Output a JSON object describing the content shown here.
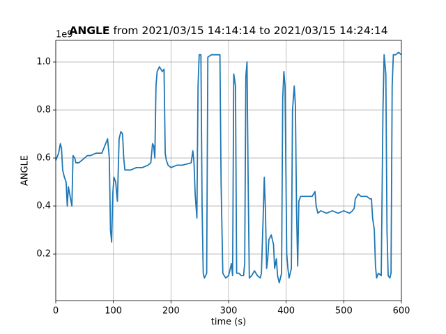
{
  "chart_data": {
    "type": "line",
    "title": {
      "bold": "ANGLE",
      "rest": "from 2021/03/15 14:14:14 to 2021/03/15 14:24:14"
    },
    "offset_label": "1e9",
    "x_label": "time (s)",
    "y_label": "ANGLE",
    "xlim": [
      0,
      600
    ],
    "xticks": [
      0,
      100,
      200,
      300,
      400,
      500,
      600
    ],
    "ylim": [
      0.006,
      1.09
    ],
    "yticks": [
      0.2,
      0.4,
      0.6,
      0.8,
      {
        "value": 1,
        "label": "1.0"
      }
    ],
    "grid": true,
    "series": [
      {
        "color": "#1f77b4",
        "x": [
          0,
          5,
          8,
          10,
          12,
          15,
          18,
          20,
          22,
          25,
          28,
          30,
          33,
          35,
          40,
          45,
          50,
          55,
          60,
          70,
          80,
          90,
          93,
          95,
          97,
          99,
          101,
          104,
          107,
          110,
          113,
          116,
          118,
          120,
          125,
          130,
          140,
          150,
          160,
          165,
          168,
          170,
          172,
          174,
          176,
          180,
          185,
          188,
          190,
          192,
          195,
          200,
          210,
          220,
          235,
          238,
          240,
          242,
          245,
          247,
          249,
          252,
          254,
          256,
          258,
          262,
          264,
          270,
          280,
          285,
          287,
          290,
          295,
          300,
          305,
          307,
          309,
          312,
          314,
          318,
          322,
          326,
          328,
          330,
          332,
          334,
          336,
          340,
          345,
          350,
          355,
          357,
          360,
          362,
          364,
          366,
          368,
          370,
          374,
          378,
          380,
          383,
          385,
          388,
          392,
          394,
          396,
          398,
          401,
          403,
          405,
          409,
          411,
          414,
          416,
          418,
          420,
          422,
          425,
          430,
          440,
          445,
          450,
          452,
          455,
          460,
          470,
          480,
          490,
          500,
          510,
          515,
          518,
          520,
          525,
          530,
          540,
          545,
          548,
          550,
          553,
          555,
          557,
          560,
          565,
          568,
          570,
          573,
          575,
          577,
          580,
          582,
          584,
          586,
          590,
          595,
          600
        ],
        "values": [
          0.59,
          0.62,
          0.66,
          0.64,
          0.55,
          0.52,
          0.5,
          0.4,
          0.48,
          0.44,
          0.4,
          0.61,
          0.6,
          0.58,
          0.58,
          0.59,
          0.6,
          0.61,
          0.61,
          0.62,
          0.62,
          0.68,
          0.6,
          0.3,
          0.25,
          0.45,
          0.52,
          0.5,
          0.42,
          0.68,
          0.71,
          0.7,
          0.6,
          0.55,
          0.55,
          0.55,
          0.56,
          0.56,
          0.57,
          0.58,
          0.66,
          0.65,
          0.6,
          0.9,
          0.96,
          0.98,
          0.96,
          0.97,
          0.62,
          0.59,
          0.57,
          0.56,
          0.57,
          0.57,
          0.58,
          0.63,
          0.58,
          0.45,
          0.35,
          0.9,
          1.03,
          1.03,
          0.4,
          0.12,
          0.1,
          0.12,
          1.02,
          1.03,
          1.03,
          1.03,
          0.5,
          0.12,
          0.1,
          0.11,
          0.16,
          0.11,
          0.95,
          0.9,
          0.12,
          0.12,
          0.11,
          0.11,
          0.16,
          0.94,
          1.0,
          0.5,
          0.1,
          0.11,
          0.13,
          0.11,
          0.1,
          0.12,
          0.35,
          0.52,
          0.38,
          0.14,
          0.18,
          0.26,
          0.28,
          0.24,
          0.14,
          0.18,
          0.11,
          0.08,
          0.12,
          0.85,
          0.96,
          0.9,
          0.2,
          0.14,
          0.1,
          0.14,
          0.8,
          0.9,
          0.82,
          0.38,
          0.15,
          0.42,
          0.44,
          0.44,
          0.44,
          0.44,
          0.46,
          0.4,
          0.37,
          0.38,
          0.37,
          0.38,
          0.37,
          0.38,
          0.37,
          0.38,
          0.39,
          0.43,
          0.45,
          0.44,
          0.44,
          0.43,
          0.43,
          0.35,
          0.3,
          0.15,
          0.1,
          0.12,
          0.11,
          0.8,
          1.03,
          0.95,
          0.3,
          0.11,
          0.1,
          0.12,
          0.9,
          1.03,
          1.03,
          1.04,
          1.03
        ]
      }
    ]
  }
}
